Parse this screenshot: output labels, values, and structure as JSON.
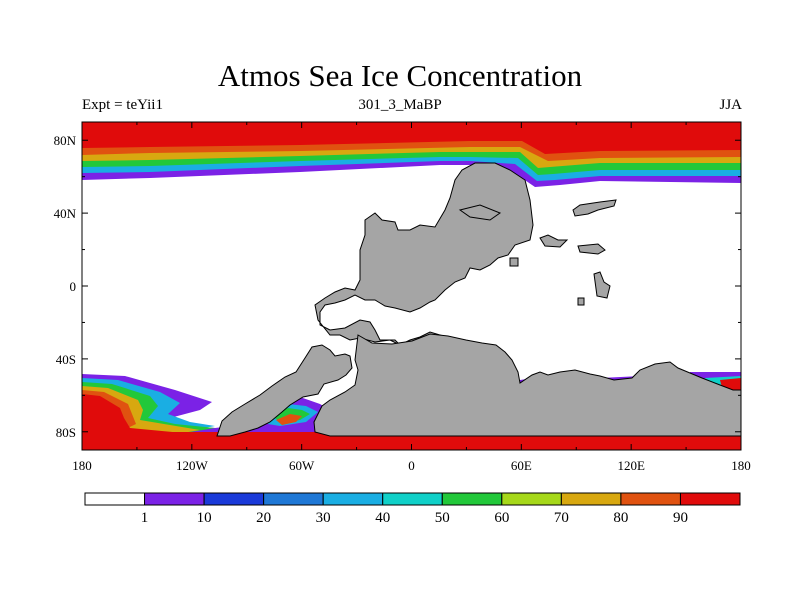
{
  "title": "Atmos Sea Ice Concentration",
  "left_subtitle": "Expt = teYii1",
  "center_subtitle": "301_3_MaBP",
  "right_subtitle": "JJA",
  "x_ticks": [
    {
      "lon": -180,
      "label": "180"
    },
    {
      "lon": -120,
      "label": "120W"
    },
    {
      "lon": -60,
      "label": "60W"
    },
    {
      "lon": 0,
      "label": "0"
    },
    {
      "lon": 60,
      "label": "60E"
    },
    {
      "lon": 120,
      "label": "120E"
    },
    {
      "lon": 180,
      "label": "180"
    }
  ],
  "y_ticks": [
    {
      "lat": 80,
      "label": "80N"
    },
    {
      "lat": 40,
      "label": "40N"
    },
    {
      "lat": 0,
      "label": "0"
    },
    {
      "lat": -40,
      "label": "40S"
    },
    {
      "lat": -80,
      "label": "80S"
    }
  ],
  "colorbar": {
    "bins": [
      "#ffffff",
      "#7b22e6",
      "#1a3ad9",
      "#1f78d6",
      "#1aaee3",
      "#10d0c8",
      "#22c83a",
      "#a6d81a",
      "#d8a810",
      "#e05210",
      "#e00b0b"
    ],
    "labels": [
      "1",
      "10",
      "20",
      "30",
      "40",
      "50",
      "60",
      "70",
      "80",
      "90"
    ]
  },
  "colors": {
    "land": "#a5a5a5",
    "ice_high": "#e00b0b",
    "ice_80": "#e05210",
    "ice_70": "#d8a810",
    "ice_60": "#a6d81a",
    "ice_50": "#22c83a",
    "ice_40": "#10d0c8",
    "ice_30": "#1aaee3",
    "ice_20": "#1f78d6",
    "ice_10": "#1a3ad9",
    "ice_1": "#7b22e6"
  }
}
